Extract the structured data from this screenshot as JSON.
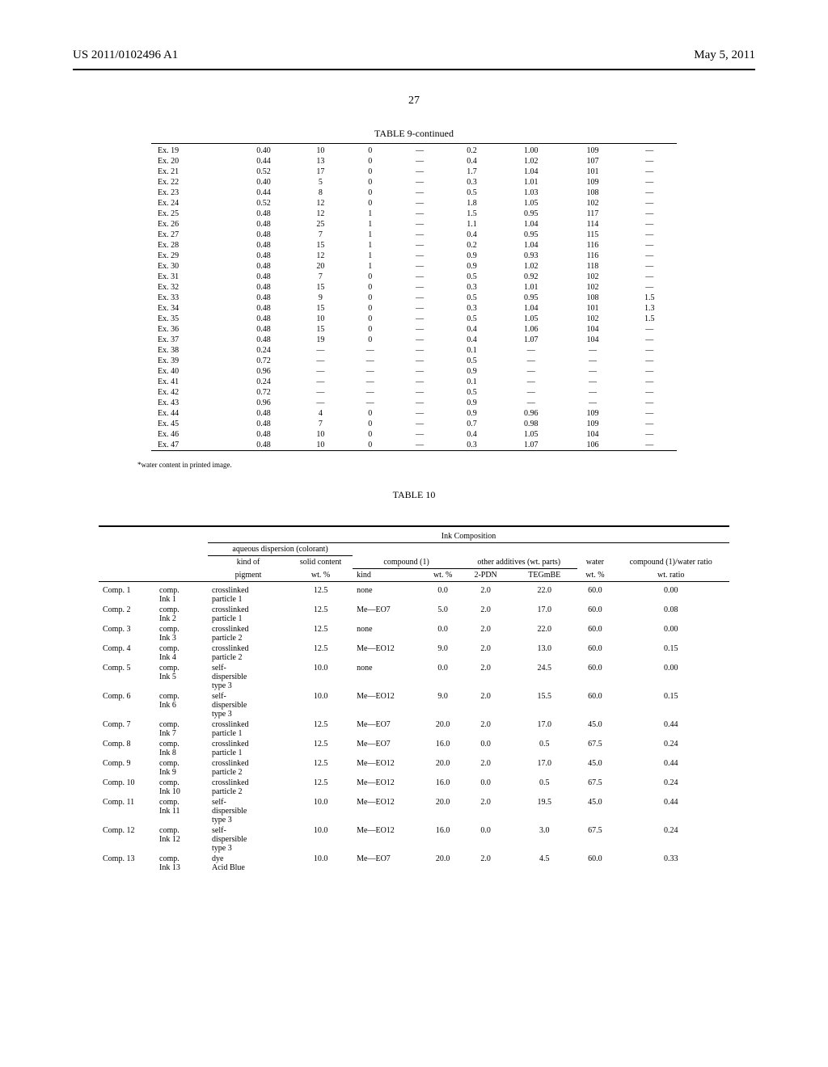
{
  "header": {
    "pub_number": "US 2011/0102496 A1",
    "pub_date": "May 5, 2011",
    "page_number": "27"
  },
  "table9": {
    "title": "TABLE 9-continued",
    "rows": [
      [
        "Ex. 19",
        "0.40",
        "10",
        "0",
        "—",
        "0.2",
        "1.00",
        "109",
        "—"
      ],
      [
        "Ex. 20",
        "0.44",
        "13",
        "0",
        "—",
        "0.4",
        "1.02",
        "107",
        "—"
      ],
      [
        "Ex. 21",
        "0.52",
        "17",
        "0",
        "—",
        "1.7",
        "1.04",
        "101",
        "—"
      ],
      [
        "Ex. 22",
        "0.40",
        "5",
        "0",
        "—",
        "0.3",
        "1.01",
        "109",
        "—"
      ],
      [
        "Ex. 23",
        "0.44",
        "8",
        "0",
        "—",
        "0.5",
        "1.03",
        "108",
        "—"
      ],
      [
        "Ex. 24",
        "0.52",
        "12",
        "0",
        "—",
        "1.8",
        "1.05",
        "102",
        "—"
      ],
      [
        "Ex. 25",
        "0.48",
        "12",
        "1",
        "—",
        "1.5",
        "0.95",
        "117",
        "—"
      ],
      [
        "Ex. 26",
        "0.48",
        "25",
        "1",
        "—",
        "1.1",
        "1.04",
        "114",
        "—"
      ],
      [
        "Ex. 27",
        "0.48",
        "7",
        "1",
        "—",
        "0.4",
        "0.95",
        "115",
        "—"
      ],
      [
        "Ex. 28",
        "0.48",
        "15",
        "1",
        "—",
        "0.2",
        "1.04",
        "116",
        "—"
      ],
      [
        "Ex. 29",
        "0.48",
        "12",
        "1",
        "—",
        "0.9",
        "0.93",
        "116",
        "—"
      ],
      [
        "Ex. 30",
        "0.48",
        "20",
        "1",
        "—",
        "0.9",
        "1.02",
        "118",
        "—"
      ],
      [
        "Ex. 31",
        "0.48",
        "7",
        "0",
        "—",
        "0.5",
        "0.92",
        "102",
        "—"
      ],
      [
        "Ex. 32",
        "0.48",
        "15",
        "0",
        "—",
        "0.3",
        "1.01",
        "102",
        "—"
      ],
      [
        "Ex. 33",
        "0.48",
        "9",
        "0",
        "—",
        "0.5",
        "0.95",
        "108",
        "1.5"
      ],
      [
        "Ex. 34",
        "0.48",
        "15",
        "0",
        "—",
        "0.3",
        "1.04",
        "101",
        "1.3"
      ],
      [
        "Ex. 35",
        "0.48",
        "10",
        "0",
        "—",
        "0.5",
        "1.05",
        "102",
        "1.5"
      ],
      [
        "Ex. 36",
        "0.48",
        "15",
        "0",
        "—",
        "0.4",
        "1.06",
        "104",
        "—"
      ],
      [
        "Ex. 37",
        "0.48",
        "19",
        "0",
        "—",
        "0.4",
        "1.07",
        "104",
        "—"
      ],
      [
        "Ex. 38",
        "0.24",
        "—",
        "—",
        "—",
        "0.1",
        "—",
        "—",
        "—"
      ],
      [
        "Ex. 39",
        "0.72",
        "—",
        "—",
        "—",
        "0.5",
        "—",
        "—",
        "—"
      ],
      [
        "Ex. 40",
        "0.96",
        "—",
        "—",
        "—",
        "0.9",
        "—",
        "—",
        "—"
      ],
      [
        "Ex. 41",
        "0.24",
        "—",
        "—",
        "—",
        "0.1",
        "—",
        "—",
        "—"
      ],
      [
        "Ex. 42",
        "0.72",
        "—",
        "—",
        "—",
        "0.5",
        "—",
        "—",
        "—"
      ],
      [
        "Ex. 43",
        "0.96",
        "—",
        "—",
        "—",
        "0.9",
        "—",
        "—",
        "—"
      ],
      [
        "Ex. 44",
        "0.48",
        "4",
        "0",
        "—",
        "0.9",
        "0.96",
        "109",
        "—"
      ],
      [
        "Ex. 45",
        "0.48",
        "7",
        "0",
        "—",
        "0.7",
        "0.98",
        "109",
        "—"
      ],
      [
        "Ex. 46",
        "0.48",
        "10",
        "0",
        "—",
        "0.4",
        "1.05",
        "104",
        "—"
      ],
      [
        "Ex. 47",
        "0.48",
        "10",
        "0",
        "—",
        "0.3",
        "1.07",
        "106",
        "—"
      ]
    ],
    "footnote": "*water content in printed image."
  },
  "table10": {
    "title": "TABLE 10",
    "header_spans": {
      "ink_comp": "Ink Composition",
      "aq_disp": "aqueous dispersion (colorant)",
      "kind_of": "kind of",
      "solid_content": "solid content",
      "compound1": "compound (1)",
      "other_add": "other additives (wt. parts)",
      "water": "water",
      "comp_water": "compound (1)/water ratio",
      "pigment": "pigment",
      "wtp1": "wt. %",
      "kind": "kind",
      "wtp2": "wt. %",
      "pdn": "2-PDN",
      "tegmbe": "TEGmBE",
      "wtp3": "wt. %",
      "wtratio": "wt. ratio"
    },
    "rows": [
      {
        "id": "Comp. 1",
        "ink": "comp. Ink 1",
        "pigment": "crosslinked particle 1",
        "sc": "12.5",
        "kind": "none",
        "kwt": "0.0",
        "pdn": "2.0",
        "teg": "22.0",
        "water": "60.0",
        "ratio": "0.00"
      },
      {
        "id": "Comp. 2",
        "ink": "comp. Ink 2",
        "pigment": "crosslinked particle 1",
        "sc": "12.5",
        "kind": "Me—EO7",
        "kwt": "5.0",
        "pdn": "2.0",
        "teg": "17.0",
        "water": "60.0",
        "ratio": "0.08"
      },
      {
        "id": "Comp. 3",
        "ink": "comp. Ink 3",
        "pigment": "crosslinked particle 2",
        "sc": "12.5",
        "kind": "none",
        "kwt": "0.0",
        "pdn": "2.0",
        "teg": "22.0",
        "water": "60.0",
        "ratio": "0.00"
      },
      {
        "id": "Comp. 4",
        "ink": "comp. Ink 4",
        "pigment": "crosslinked particle 2",
        "sc": "12.5",
        "kind": "Me—EO12",
        "kwt": "9.0",
        "pdn": "2.0",
        "teg": "13.0",
        "water": "60.0",
        "ratio": "0.15"
      },
      {
        "id": "Comp. 5",
        "ink": "comp. Ink 5",
        "pigment": "self-dispersible type 3",
        "sc": "10.0",
        "kind": "none",
        "kwt": "0.0",
        "pdn": "2.0",
        "teg": "24.5",
        "water": "60.0",
        "ratio": "0.00"
      },
      {
        "id": "Comp. 6",
        "ink": "comp. Ink 6",
        "pigment": "self-dispersible type 3",
        "sc": "10.0",
        "kind": "Me—EO12",
        "kwt": "9.0",
        "pdn": "2.0",
        "teg": "15.5",
        "water": "60.0",
        "ratio": "0.15"
      },
      {
        "id": "Comp. 7",
        "ink": "comp. Ink 7",
        "pigment": "crosslinked particle 1",
        "sc": "12.5",
        "kind": "Me—EO7",
        "kwt": "20.0",
        "pdn": "2.0",
        "teg": "17.0",
        "water": "45.0",
        "ratio": "0.44"
      },
      {
        "id": "Comp. 8",
        "ink": "comp. Ink 8",
        "pigment": "crosslinked particle 1",
        "sc": "12.5",
        "kind": "Me—EO7",
        "kwt": "16.0",
        "pdn": "0.0",
        "teg": "0.5",
        "water": "67.5",
        "ratio": "0.24"
      },
      {
        "id": "Comp. 9",
        "ink": "comp. Ink 9",
        "pigment": "crosslinked particle 2",
        "sc": "12.5",
        "kind": "Me—EO12",
        "kwt": "20.0",
        "pdn": "2.0",
        "teg": "17.0",
        "water": "45.0",
        "ratio": "0.44"
      },
      {
        "id": "Comp. 10",
        "ink": "comp. Ink 10",
        "pigment": "crosslinked particle 2",
        "sc": "12.5",
        "kind": "Me—EO12",
        "kwt": "16.0",
        "pdn": "0.0",
        "teg": "0.5",
        "water": "67.5",
        "ratio": "0.24"
      },
      {
        "id": "Comp. 11",
        "ink": "comp. Ink 11",
        "pigment": "self-dispersible type 3",
        "sc": "10.0",
        "kind": "Me—EO12",
        "kwt": "20.0",
        "pdn": "2.0",
        "teg": "19.5",
        "water": "45.0",
        "ratio": "0.44"
      },
      {
        "id": "Comp. 12",
        "ink": "comp. Ink 12",
        "pigment": "self-dispersible type 3",
        "sc": "10.0",
        "kind": "Me—EO12",
        "kwt": "16.0",
        "pdn": "0.0",
        "teg": "3.0",
        "water": "67.5",
        "ratio": "0.24"
      },
      {
        "id": "Comp. 13",
        "ink": "comp. Ink 13",
        "pigment": "dye Acid Blue",
        "sc": "10.0",
        "kind": "Me—EO7",
        "kwt": "20.0",
        "pdn": "2.0",
        "teg": "4.5",
        "water": "60.0",
        "ratio": "0.33"
      }
    ]
  }
}
